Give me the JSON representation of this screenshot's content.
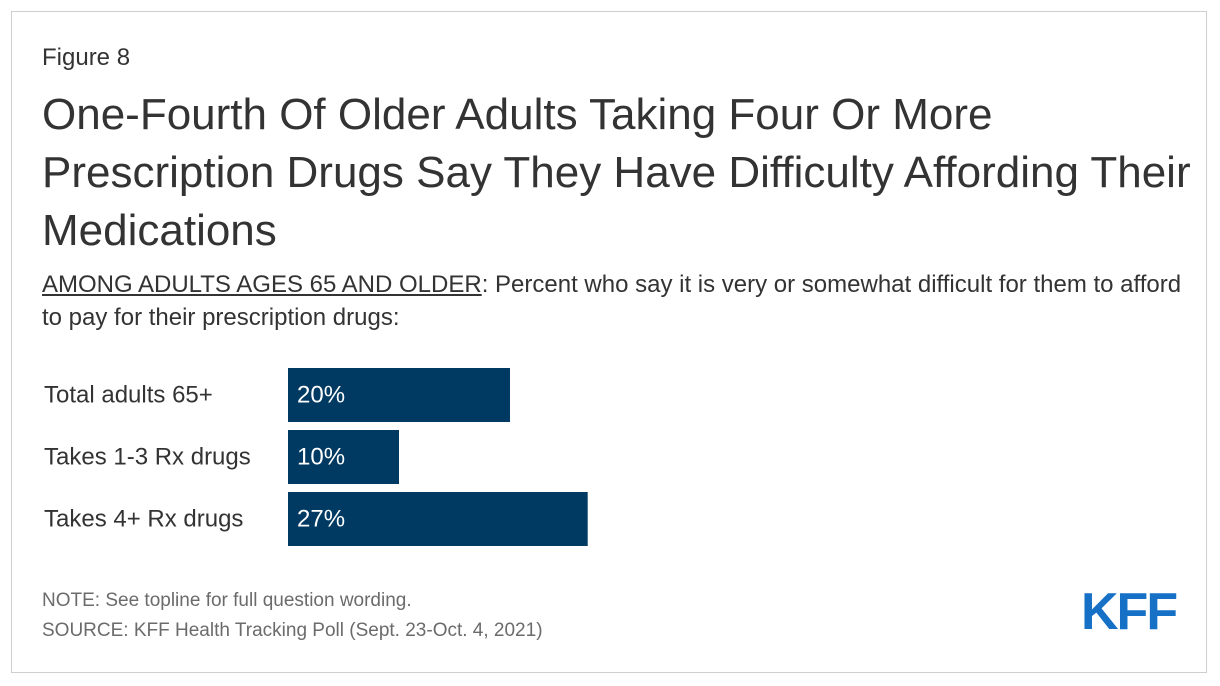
{
  "figure_label": "Figure 8",
  "subtitle_emphasis": "AMONG ADULTS AGES 65 AND OLDER",
  "subtitle_rest": ": Percent who say it is very or somewhat difficult for them to afford to pay for their prescription drugs:",
  "note": "NOTE: See topline for full question wording.",
  "source": "SOURCE: KFF Health Tracking Poll (Sept. 23-Oct. 4, 2021)",
  "logo_text": "KFF",
  "colors": {
    "bar": "#003a63",
    "logo": "#1570c6",
    "text": "#333333",
    "footnote": "#6b6b6b"
  },
  "chart_data": {
    "type": "bar",
    "orientation": "horizontal",
    "title": "One-Fourth Of Older Adults Taking Four Or More Prescription Drugs Say They Have Difficulty Affording Their Medications",
    "categories": [
      "Total adults 65+",
      "Takes 1-3 Rx drugs",
      "Takes 4+ Rx drugs"
    ],
    "values": [
      20,
      10,
      27
    ],
    "data_labels": [
      "20%",
      "10%",
      "27%"
    ],
    "unit": "%",
    "grid": false,
    "legend": "none"
  }
}
